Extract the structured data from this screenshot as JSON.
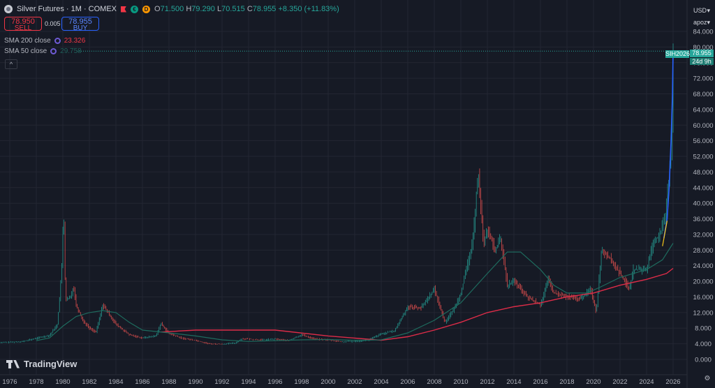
{
  "header": {
    "symbol": "Silver Futures · 1M · COMEX",
    "icon_green": "€",
    "icon_orange": "D",
    "open_label": "O",
    "open": "71.500",
    "high_label": "H",
    "high": "79.290",
    "low_label": "L",
    "low": "70.515",
    "close_label": "C",
    "close": "78.955",
    "change": "+8.350 (+11.83%)"
  },
  "trade": {
    "sell_price": "78.950",
    "sell_label": "SELL",
    "spread": "0.005",
    "buy_price": "78.955",
    "buy_label": "BUY"
  },
  "indicators": [
    {
      "label": "SMA 200 close",
      "value": "23.326",
      "color": "#f23645"
    },
    {
      "label": "SMA 50 close",
      "value": "29.758",
      "color": "#1f5f5a"
    }
  ],
  "collapse_icon": "^",
  "scale": {
    "currency": "USD",
    "mode": "apoz"
  },
  "price_tag": {
    "symbol_code": "SIH2026",
    "price": "78.955",
    "countdown": "24d 9h"
  },
  "watermark": "TradingView",
  "colors": {
    "background": "#161a25",
    "grid": "#232632",
    "up": "#26a69a",
    "down": "#ef5350",
    "sma200": "#dd2c48",
    "sma50": "#1e6b5e",
    "fib": "#2962ff"
  },
  "chart_data": {
    "type": "line",
    "series_type": "candlestick (monthly, rendered as range bars)",
    "x_ticks": [
      "1976",
      "1978",
      "1980",
      "1982",
      "1984",
      "1986",
      "1988",
      "1990",
      "1992",
      "1994",
      "1996",
      "1998",
      "2000",
      "2002",
      "2004",
      "2006",
      "2008",
      "2010",
      "2012",
      "2014",
      "2016",
      "2018",
      "2020",
      "2022",
      "2024",
      "2026"
    ],
    "y_ticks": [
      "0.000",
      "4.000",
      "8.000",
      "12.000",
      "16.000",
      "20.000",
      "24.000",
      "28.000",
      "32.000",
      "36.000",
      "40.000",
      "44.000",
      "48.000",
      "52.000",
      "56.000",
      "60.000",
      "64.000",
      "68.000",
      "72.000",
      "76.000",
      "80.000",
      "84.000"
    ],
    "ylim": [
      0,
      86
    ],
    "xlim": [
      1975,
      2027.2
    ],
    "series": [
      {
        "name": "Silver Futures",
        "points": [
          [
            1975.0,
            4.3
          ],
          [
            1976.0,
            4.4
          ],
          [
            1977.0,
            4.6
          ],
          [
            1978.0,
            5.4
          ],
          [
            1979.0,
            6.2
          ],
          [
            1979.6,
            9.0
          ],
          [
            1979.95,
            25.0
          ],
          [
            1980.05,
            41.0
          ],
          [
            1980.2,
            15.0
          ],
          [
            1980.6,
            16.0
          ],
          [
            1980.8,
            19.0
          ],
          [
            1981.0,
            14.0
          ],
          [
            1981.5,
            10.0
          ],
          [
            1982.0,
            8.0
          ],
          [
            1982.5,
            7.0
          ],
          [
            1982.8,
            11.0
          ],
          [
            1983.0,
            14.0
          ],
          [
            1983.4,
            12.0
          ],
          [
            1984.0,
            9.0
          ],
          [
            1985.0,
            6.3
          ],
          [
            1986.0,
            5.5
          ],
          [
            1987.0,
            6.0
          ],
          [
            1987.4,
            9.2
          ],
          [
            1988.0,
            6.6
          ],
          [
            1989.0,
            5.4
          ],
          [
            1990.0,
            4.9
          ],
          [
            1991.0,
            4.0
          ],
          [
            1992.0,
            3.9
          ],
          [
            1993.0,
            4.2
          ],
          [
            1993.5,
            5.3
          ],
          [
            1994.0,
            5.2
          ],
          [
            1995.0,
            5.0
          ],
          [
            1996.0,
            5.2
          ],
          [
            1997.0,
            4.8
          ],
          [
            1998.0,
            6.3
          ],
          [
            1999.0,
            5.2
          ],
          [
            2000.0,
            5.0
          ],
          [
            2001.0,
            4.5
          ],
          [
            2002.0,
            4.6
          ],
          [
            2003.0,
            4.9
          ],
          [
            2004.0,
            6.5
          ],
          [
            2005.0,
            7.3
          ],
          [
            2006.0,
            13.5
          ],
          [
            2007.0,
            13.2
          ],
          [
            2008.0,
            18.0
          ],
          [
            2008.8,
            9.5
          ],
          [
            2009.5,
            13.0
          ],
          [
            2010.0,
            17.0
          ],
          [
            2010.9,
            30.0
          ],
          [
            2011.3,
            48.5
          ],
          [
            2011.7,
            30.0
          ],
          [
            2012.0,
            33.0
          ],
          [
            2012.6,
            28.0
          ],
          [
            2013.0,
            31.0
          ],
          [
            2013.5,
            19.0
          ],
          [
            2014.0,
            20.0
          ],
          [
            2015.0,
            16.0
          ],
          [
            2016.0,
            14.0
          ],
          [
            2016.6,
            20.5
          ],
          [
            2017.0,
            17.0
          ],
          [
            2018.0,
            16.0
          ],
          [
            2019.0,
            15.5
          ],
          [
            2019.8,
            18.0
          ],
          [
            2020.2,
            12.0
          ],
          [
            2020.6,
            28.0
          ],
          [
            2021.0,
            27.0
          ],
          [
            2022.0,
            22.0
          ],
          [
            2022.7,
            18.0
          ],
          [
            2023.0,
            23.0
          ],
          [
            2024.0,
            23.0
          ],
          [
            2024.5,
            30.0
          ],
          [
            2025.0,
            32.0
          ],
          [
            2025.4,
            36.0
          ],
          [
            2025.7,
            47.0
          ],
          [
            2025.9,
            58.0
          ],
          [
            2026.0,
            78.955
          ]
        ]
      },
      {
        "name": "SMA 200 close",
        "points": [
          [
            1987.4,
            7.0
          ],
          [
            1990.0,
            7.5
          ],
          [
            1996.0,
            7.5
          ],
          [
            2000.0,
            6.0
          ],
          [
            2004.0,
            4.9
          ],
          [
            2006.0,
            5.8
          ],
          [
            2008.0,
            7.5
          ],
          [
            2010.0,
            9.5
          ],
          [
            2012.0,
            12.0
          ],
          [
            2014.0,
            13.5
          ],
          [
            2016.0,
            14.5
          ],
          [
            2018.0,
            16.0
          ],
          [
            2020.0,
            17.0
          ],
          [
            2022.0,
            19.0
          ],
          [
            2024.0,
            20.5
          ],
          [
            2025.5,
            22.0
          ],
          [
            2026.0,
            23.326
          ]
        ]
      },
      {
        "name": "SMA 50 close",
        "points": [
          [
            1978.0,
            4.8
          ],
          [
            1979.0,
            5.5
          ],
          [
            1980.0,
            8.5
          ],
          [
            1981.0,
            11.0
          ],
          [
            1982.0,
            12.0
          ],
          [
            1983.0,
            12.5
          ],
          [
            1984.0,
            12.0
          ],
          [
            1985.0,
            9.5
          ],
          [
            1986.0,
            7.5
          ],
          [
            1988.0,
            6.8
          ],
          [
            1990.0,
            6.0
          ],
          [
            1992.0,
            5.0
          ],
          [
            1994.0,
            4.6
          ],
          [
            1996.0,
            4.8
          ],
          [
            1998.0,
            5.0
          ],
          [
            2000.0,
            5.1
          ],
          [
            2002.0,
            4.9
          ],
          [
            2004.0,
            5.0
          ],
          [
            2006.0,
            6.8
          ],
          [
            2008.0,
            10.0
          ],
          [
            2010.0,
            14.5
          ],
          [
            2012.0,
            22.0
          ],
          [
            2013.5,
            27.5
          ],
          [
            2014.5,
            27.5
          ],
          [
            2016.0,
            23.0
          ],
          [
            2017.0,
            19.0
          ],
          [
            2018.0,
            17.0
          ],
          [
            2019.5,
            17.0
          ],
          [
            2020.5,
            18.5
          ],
          [
            2022.0,
            21.0
          ],
          [
            2024.0,
            23.0
          ],
          [
            2025.2,
            25.5
          ],
          [
            2026.0,
            29.758
          ]
        ]
      }
    ]
  }
}
